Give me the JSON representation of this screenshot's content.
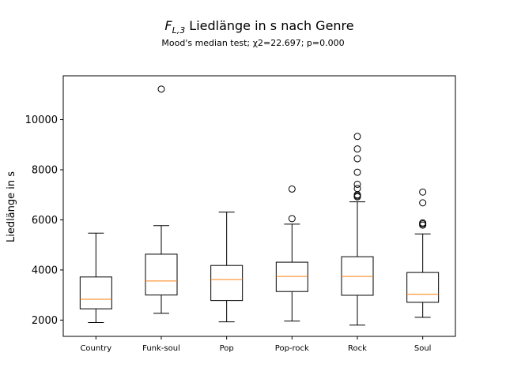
{
  "chart_data": {
    "type": "boxplot",
    "title_main": "F",
    "title_sub": "L,3",
    "title_rest": " Liedlänge in s nach Genre",
    "subtitle": "Mood's median test; χ2=22.697; p=0.000",
    "ylabel": "Liedlänge in s",
    "xlabel": "",
    "ylim": [
      1350,
      11750
    ],
    "yticks": [
      2000,
      4000,
      6000,
      8000,
      10000
    ],
    "ytick_labels": [
      "2000",
      "4000",
      "6000",
      "8000",
      "10000"
    ],
    "grid": false,
    "colors": {
      "box": "#000000",
      "median": "#ff7f0e"
    },
    "categories": [
      "Country",
      "Funk-soul",
      "Pop",
      "Pop-rock",
      "Rock",
      "Soul"
    ],
    "boxes": [
      {
        "whisker_low": 1900,
        "q1": 2450,
        "median": 2830,
        "q3": 3720,
        "whisker_high": 5470,
        "outliers": []
      },
      {
        "whisker_low": 2270,
        "q1": 3000,
        "median": 3560,
        "q3": 4630,
        "whisker_high": 5770,
        "outliers": [
          11220
        ]
      },
      {
        "whisker_low": 1930,
        "q1": 2780,
        "median": 3620,
        "q3": 4180,
        "whisker_high": 6310,
        "outliers": []
      },
      {
        "whisker_low": 1960,
        "q1": 3140,
        "median": 3740,
        "q3": 4310,
        "whisker_high": 5830,
        "outliers": [
          6050,
          7230
        ]
      },
      {
        "whisker_low": 1800,
        "q1": 2990,
        "median": 3740,
        "q3": 4530,
        "whisker_high": 6720,
        "outliers": [
          6920,
          6960,
          7000,
          7250,
          7420,
          7900,
          8440,
          8830,
          9330
        ]
      },
      {
        "whisker_low": 2110,
        "q1": 2710,
        "median": 3030,
        "q3": 3900,
        "whisker_high": 5440,
        "outliers": [
          5790,
          5840,
          5880,
          6680,
          7110
        ]
      }
    ]
  }
}
